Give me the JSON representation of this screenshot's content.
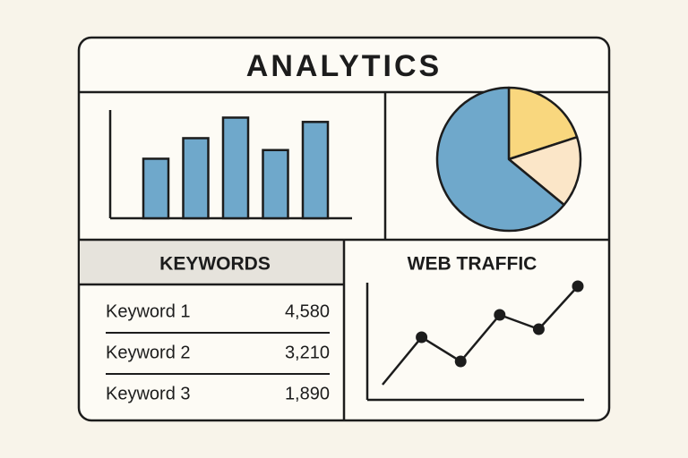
{
  "header": {
    "title": "ANALYTICS"
  },
  "bar_chart": {
    "type": "bar",
    "values": [
      55,
      74,
      93,
      63,
      89
    ],
    "ylim": [
      0,
      100
    ],
    "color": "#6fa8cb"
  },
  "pie_chart": {
    "type": "pie",
    "values": [
      20,
      16,
      64
    ],
    "colors": [
      "#f9d77e",
      "#fbe6c8",
      "#6fa8cb"
    ]
  },
  "keywords": {
    "title": "KEYWORDS",
    "rows": [
      [
        "Keyword 1",
        "4,580"
      ],
      [
        "Keyword 2",
        "3,210"
      ],
      [
        "Keyword 3",
        "1,890"
      ]
    ]
  },
  "web_traffic": {
    "type": "line",
    "title": "WEB TRAFFIC",
    "values": [
      17,
      70,
      43,
      95,
      79,
      127
    ],
    "markers": [
      false,
      true,
      true,
      true,
      true,
      true
    ],
    "ylim": [
      0,
      140
    ]
  }
}
